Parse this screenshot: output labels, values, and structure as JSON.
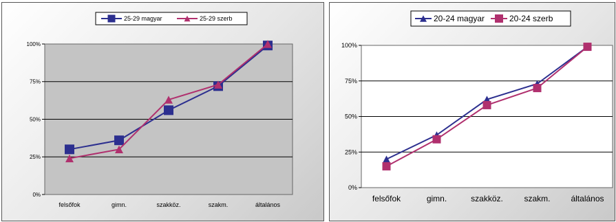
{
  "chart_data": [
    {
      "type": "line",
      "categories": [
        "felsőfok",
        "gimn.",
        "szakköz.",
        "szakm.",
        "általános"
      ],
      "ylim": [
        0,
        100
      ],
      "yticks": [
        "0%",
        "25%",
        "50%",
        "75%",
        "100%"
      ],
      "grid": true,
      "legend_position": "top",
      "series": [
        {
          "name": "25-29 magyar",
          "values": [
            30,
            36,
            56,
            72,
            99
          ],
          "color": "#2c2f8f",
          "marker": "square"
        },
        {
          "name": "25-29 szerb",
          "values": [
            24,
            30,
            63,
            73,
            100
          ],
          "color": "#b0306e",
          "marker": "triangle"
        }
      ]
    },
    {
      "type": "line",
      "categories": [
        "felsőfok",
        "gimn.",
        "szakköz.",
        "szakm.",
        "általános"
      ],
      "ylim": [
        0,
        100
      ],
      "yticks": [
        "0%",
        "25%",
        "50%",
        "75%",
        "100%"
      ],
      "grid": true,
      "legend_position": "top",
      "series": [
        {
          "name": "20-24 magyar",
          "values": [
            20,
            37,
            62,
            73,
            99
          ],
          "color": "#2c2f8f",
          "marker": "triangle"
        },
        {
          "name": "20-24 szerb",
          "values": [
            15,
            34,
            58,
            70,
            99
          ],
          "color": "#b0306e",
          "marker": "square"
        }
      ]
    }
  ]
}
